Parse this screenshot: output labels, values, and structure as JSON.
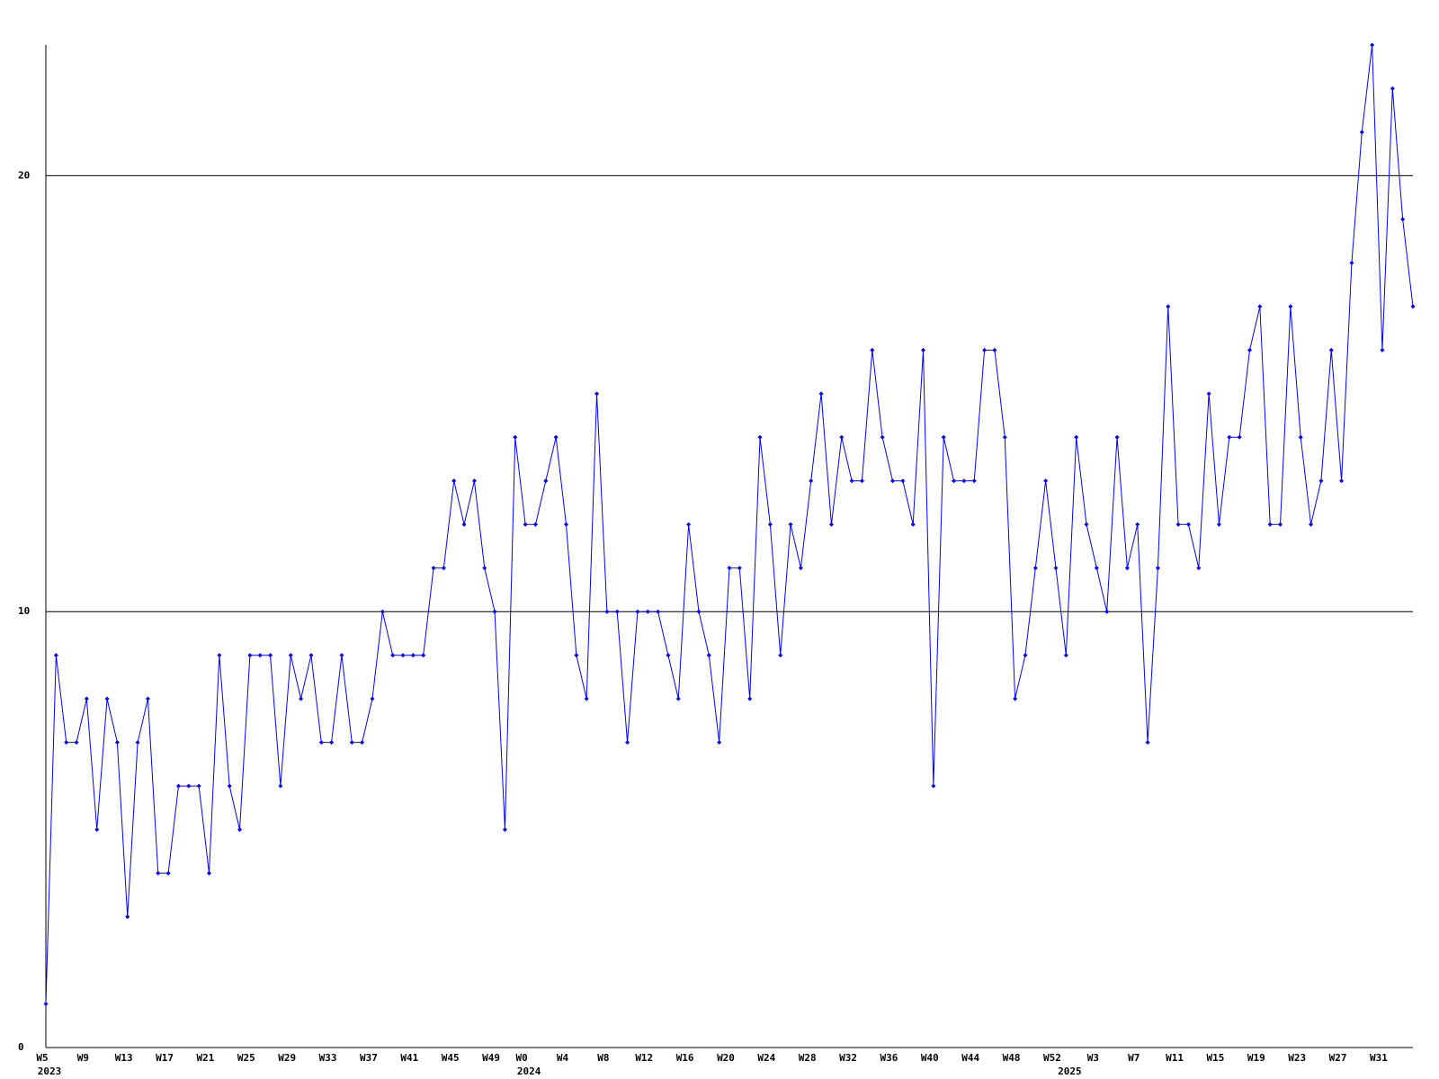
{
  "chart_data": {
    "type": "line",
    "categories": [
      "W5",
      null,
      null,
      null,
      "W9",
      null,
      null,
      null,
      "W13",
      null,
      null,
      null,
      "W17",
      null,
      null,
      null,
      "W21",
      null,
      null,
      null,
      "W25",
      null,
      null,
      null,
      "W29",
      null,
      null,
      null,
      "W33",
      null,
      null,
      null,
      "W37",
      null,
      null,
      null,
      "W41",
      null,
      null,
      null,
      "W45",
      null,
      null,
      null,
      "W49",
      null,
      null,
      "W0",
      null,
      null,
      null,
      "W4",
      null,
      null,
      null,
      "W8",
      null,
      null,
      null,
      "W12",
      null,
      null,
      null,
      "W16",
      null,
      null,
      null,
      "W20",
      null,
      null,
      null,
      "W24",
      null,
      null,
      null,
      "W28",
      null,
      null,
      null,
      "W32",
      null,
      null,
      null,
      "W36",
      null,
      null,
      null,
      "W40",
      null,
      null,
      null,
      "W44",
      null,
      null,
      null,
      "W48",
      null,
      null,
      null,
      "W52",
      null,
      null,
      null,
      "W3",
      null,
      null,
      null,
      "W7",
      null,
      null,
      null,
      "W11",
      null,
      null,
      null,
      "W15",
      null,
      null,
      null,
      "W19",
      null,
      null,
      null,
      "W23",
      null,
      null,
      null,
      "W27",
      null,
      null,
      null,
      "W31",
      null,
      null,
      null
    ],
    "years": [
      "2023",
      null,
      null,
      null,
      null,
      null,
      null,
      null,
      null,
      null,
      null,
      null,
      null,
      null,
      null,
      null,
      null,
      null,
      null,
      null,
      null,
      null,
      null,
      null,
      null,
      null,
      null,
      null,
      null,
      null,
      null,
      null,
      null,
      null,
      null,
      null,
      null,
      null,
      null,
      null,
      null,
      null,
      null,
      null,
      null,
      null,
      null,
      "2024",
      null,
      null,
      null,
      null,
      null,
      null,
      null,
      null,
      null,
      null,
      null,
      null,
      null,
      null,
      null,
      null,
      null,
      null,
      null,
      null,
      null,
      null,
      null,
      null,
      null,
      null,
      null,
      null,
      null,
      null,
      null,
      null,
      null,
      null,
      null,
      null,
      null,
      null,
      null,
      null,
      null,
      null,
      null,
      null,
      null,
      null,
      null,
      null,
      null,
      null,
      null,
      null,
      "2025",
      null,
      null,
      null,
      null,
      null,
      null,
      null,
      null,
      null,
      null,
      null,
      null,
      null,
      null,
      null,
      null,
      null,
      null,
      null,
      null,
      null,
      null,
      null,
      null,
      null,
      null,
      null,
      null,
      null,
      null,
      null,
      null,
      null,
      null
    ],
    "series": [
      {
        "color": "#0000ff",
        "values": [
          1,
          9,
          7,
          7,
          8,
          5,
          8,
          7,
          3,
          7,
          8,
          4,
          4,
          6,
          6,
          6,
          4,
          9,
          6,
          5,
          9,
          9,
          9,
          6,
          9,
          8,
          9,
          7,
          7,
          9,
          7,
          7,
          8,
          10,
          9,
          9,
          9,
          9,
          11,
          11,
          13,
          12,
          13,
          11,
          10,
          5,
          14,
          12,
          12,
          13,
          14,
          12,
          9,
          8,
          15,
          10,
          10,
          7,
          10,
          10,
          10,
          9,
          8,
          12,
          10,
          9,
          7,
          11,
          11,
          8,
          14,
          12,
          9,
          12,
          11,
          13,
          15,
          12,
          14,
          13,
          13,
          16,
          14,
          13,
          13,
          12,
          16,
          6,
          14,
          13,
          13,
          13,
          16,
          16,
          14,
          8,
          9,
          11,
          13,
          11,
          9,
          14,
          12,
          11,
          10,
          14,
          11,
          12,
          7,
          11,
          17,
          12,
          12,
          11,
          15,
          12,
          14,
          14,
          16,
          17,
          12,
          12,
          17,
          14,
          12,
          13,
          16,
          13,
          18,
          21,
          23,
          16,
          22,
          19,
          17
        ]
      }
    ],
    "ylim": [
      0,
      23
    ],
    "yticks": [
      0,
      10,
      20
    ],
    "grid": true
  }
}
